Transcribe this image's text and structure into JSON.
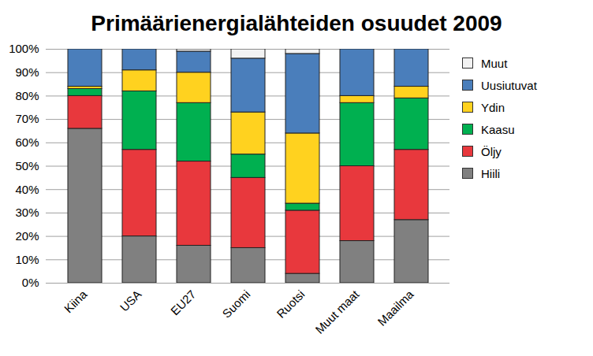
{
  "chart_data": {
    "type": "bar",
    "stacked": true,
    "title": "Primäärienergialähteiden osuudet 2009",
    "categories": [
      "Kiina",
      "USA",
      "EU27",
      "Suomi",
      "Ruotsi",
      "Muut maat",
      "Maailma"
    ],
    "series": [
      {
        "name": "Hiili",
        "color": "#808080",
        "values": [
          66,
          20,
          16,
          15,
          4,
          18,
          27
        ]
      },
      {
        "name": "Öljy",
        "color": "#e8383d",
        "values": [
          14,
          37,
          36,
          30,
          27,
          32,
          30
        ]
      },
      {
        "name": "Kaasu",
        "color": "#00b050",
        "values": [
          3,
          25,
          25,
          10,
          3,
          27,
          22
        ]
      },
      {
        "name": "Ydin",
        "color": "#ffd21f",
        "values": [
          1,
          9,
          13,
          18,
          30,
          3,
          5
        ]
      },
      {
        "name": "Uusiutuvat",
        "color": "#4a7ebb",
        "values": [
          16,
          9,
          9,
          23,
          34,
          20,
          16
        ]
      },
      {
        "name": "Muut",
        "color": "#f2f2f2",
        "values": [
          0,
          0,
          1,
          4,
          2,
          0,
          0
        ]
      }
    ],
    "ylim": [
      0,
      100
    ],
    "yticks": [
      {
        "value": 0,
        "label": "0%"
      },
      {
        "value": 10,
        "label": "10%"
      },
      {
        "value": 20,
        "label": "20%"
      },
      {
        "value": 30,
        "label": "30%"
      },
      {
        "value": 40,
        "label": "40%"
      },
      {
        "value": 50,
        "label": "50%"
      },
      {
        "value": 60,
        "label": "60%"
      },
      {
        "value": 70,
        "label": "70%"
      },
      {
        "value": 80,
        "label": "80%"
      },
      {
        "value": 90,
        "label": "90%"
      },
      {
        "value": 100,
        "label": "100%"
      }
    ],
    "grid": true,
    "legend": "right"
  }
}
